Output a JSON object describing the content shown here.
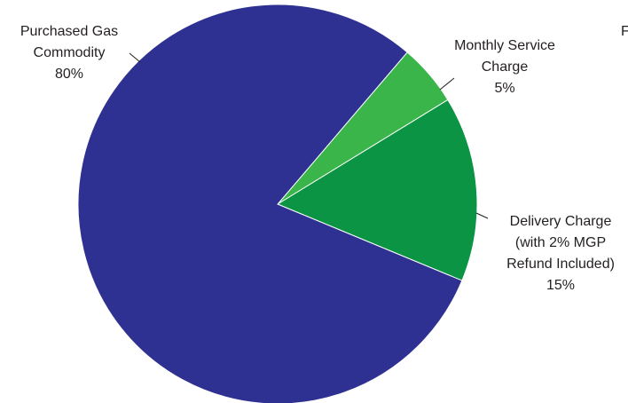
{
  "chart_data": {
    "type": "pie",
    "slices": [
      {
        "label_lines": [
          "Purchased Gas",
          "Commodity"
        ],
        "value": 80,
        "value_label": "80%",
        "color": "#2e3192"
      },
      {
        "label_lines": [
          "Monthly Service",
          "Charge"
        ],
        "value": 5,
        "value_label": "5%",
        "color": "#39b54a"
      },
      {
        "label_lines": [
          "Delivery Charge",
          "(with 2% MGP",
          "Refund Included)"
        ],
        "value": 15,
        "value_label": "15%",
        "color": "#0b9444"
      }
    ],
    "corner_text": "F"
  }
}
